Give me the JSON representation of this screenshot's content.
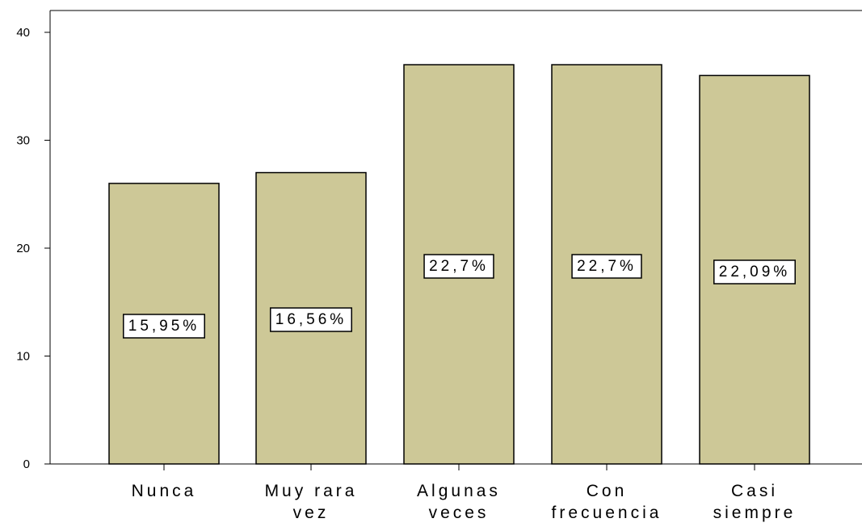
{
  "chart_data": {
    "type": "bar",
    "categories": [
      [
        "Nunca"
      ],
      [
        "Muy rara",
        "vez"
      ],
      [
        "Algunas",
        "veces"
      ],
      [
        "Con",
        "frecuencia"
      ],
      [
        "Casi",
        "siempre"
      ]
    ],
    "values": [
      26,
      27,
      37,
      37,
      36
    ],
    "data_labels": [
      "15,95%",
      "16,56%",
      "22,7%",
      "22,7%",
      "22,09%"
    ],
    "y_ticks": [
      "0",
      "10",
      "20",
      "30",
      "40"
    ],
    "ylim": [
      0,
      40
    ],
    "title": "",
    "xlabel": "",
    "ylabel": "",
    "grid": false,
    "legend": false,
    "colors": {
      "bar_fill": "#cdc897",
      "bar_stroke": "#000000",
      "axis": "#000000",
      "background": "#ffffff"
    }
  }
}
